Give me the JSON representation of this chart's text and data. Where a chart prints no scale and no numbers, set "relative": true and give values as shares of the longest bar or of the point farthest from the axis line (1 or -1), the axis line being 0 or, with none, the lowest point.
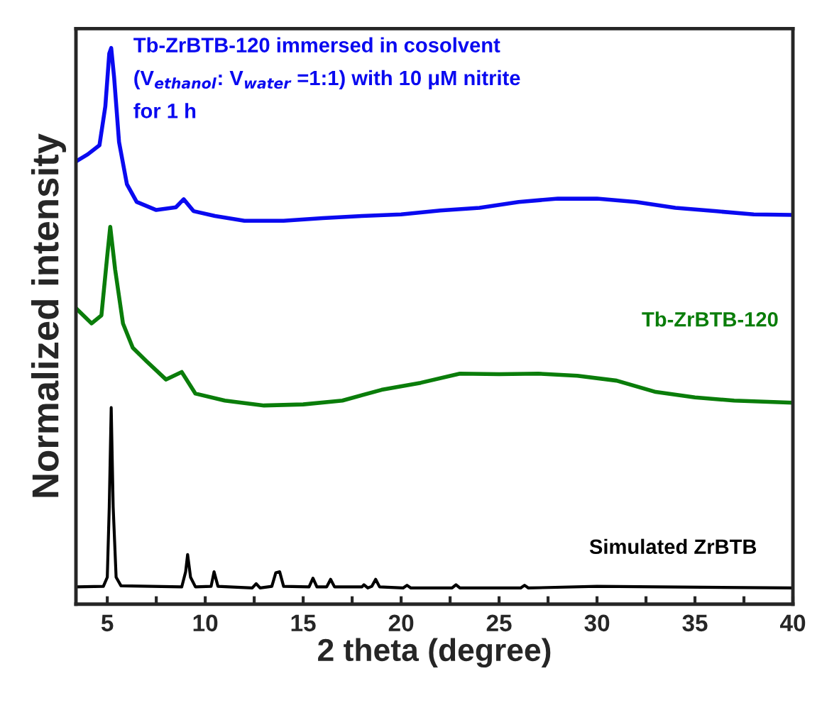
{
  "chart_data": {
    "type": "line",
    "relative": true,
    "xlabel": "2 theta (degree)",
    "ylabel": "Normalized intensity",
    "xlim": [
      3.4,
      40
    ],
    "xticks": [
      5,
      {
        "value": 7.5,
        "label": null
      },
      10,
      {
        "value": 12.5,
        "label": null
      },
      15,
      {
        "value": 17.5,
        "label": null
      },
      20,
      {
        "value": 22.5,
        "label": null
      },
      25,
      {
        "value": 27.5,
        "label": null
      },
      30,
      {
        "value": 32.5,
        "label": null
      },
      35,
      {
        "value": 37.5,
        "label": null
      },
      40
    ],
    "tick_labels": "x",
    "grid": false,
    "legend": false,
    "marker": "none",
    "line_style": "solid",
    "series": [
      {
        "name": "Tb-ZrBTB-120 immersed in cosolvent\n(V$_{ethanol}$: V$_{water}$ =1:1) with 10 μM nitrite\nfor 1 h",
        "color": "#0a0af0",
        "x": [
          3.4,
          4.0,
          4.6,
          4.9,
          5.1,
          5.2,
          5.35,
          5.6,
          6.0,
          6.5,
          7.5,
          8.5,
          8.9,
          9.4,
          10.5,
          12,
          14,
          16,
          18,
          20,
          22,
          24,
          26,
          28,
          30,
          32,
          34,
          36,
          38,
          40
        ],
        "values": [
          0.79,
          0.803,
          0.82,
          0.892,
          0.99,
          1.0,
          0.945,
          0.826,
          0.748,
          0.715,
          0.7,
          0.705,
          0.72,
          0.698,
          0.689,
          0.68,
          0.68,
          0.685,
          0.689,
          0.692,
          0.699,
          0.704,
          0.715,
          0.721,
          0.721,
          0.715,
          0.704,
          0.698,
          0.692,
          0.691
        ]
      },
      {
        "name": "Tb-ZrBTB-120",
        "color": "#0a7d0a",
        "x": [
          3.4,
          4.2,
          4.7,
          5.0,
          5.15,
          5.4,
          5.8,
          6.3,
          7,
          8,
          8.8,
          9.5,
          11,
          13,
          15,
          17,
          19,
          21,
          23,
          25,
          27,
          29,
          31,
          33,
          35,
          37,
          40
        ],
        "values": [
          0.518,
          0.49,
          0.505,
          0.616,
          0.669,
          0.59,
          0.49,
          0.445,
          0.42,
          0.386,
          0.4,
          0.36,
          0.347,
          0.338,
          0.34,
          0.347,
          0.367,
          0.38,
          0.397,
          0.396,
          0.397,
          0.393,
          0.384,
          0.363,
          0.353,
          0.347,
          0.343
        ]
      },
      {
        "name": "Simulated ZrBTB",
        "color": "#000000",
        "x": [
          3.4,
          4.8,
          5.0,
          5.1,
          5.2,
          5.3,
          5.45,
          5.7,
          8.8,
          9.0,
          9.1,
          9.25,
          9.5,
          10.3,
          10.45,
          10.65,
          12.4,
          12.6,
          12.8,
          13.4,
          13.6,
          13.8,
          14.0,
          15.3,
          15.5,
          15.7,
          16.2,
          16.4,
          16.6,
          18.0,
          18.1,
          18.3,
          18.5,
          18.7,
          18.9,
          20.1,
          20.3,
          20.5,
          22.6,
          22.8,
          23.0,
          26.1,
          26.3,
          26.5,
          30,
          40
        ],
        "values": [
          0.002,
          0.003,
          0.02,
          0.15,
          0.334,
          0.15,
          0.02,
          0.004,
          0.002,
          0.03,
          0.062,
          0.02,
          0.002,
          0.003,
          0.03,
          0.003,
          0,
          0.008,
          0,
          0.003,
          0.028,
          0.03,
          0.003,
          0.002,
          0.018,
          0.002,
          0.002,
          0.016,
          0.002,
          0.002,
          0.006,
          0,
          0.003,
          0.016,
          0.002,
          0,
          0.005,
          0,
          0,
          0.006,
          0,
          0,
          0.005,
          0,
          0.003,
          0
        ]
      }
    ]
  }
}
